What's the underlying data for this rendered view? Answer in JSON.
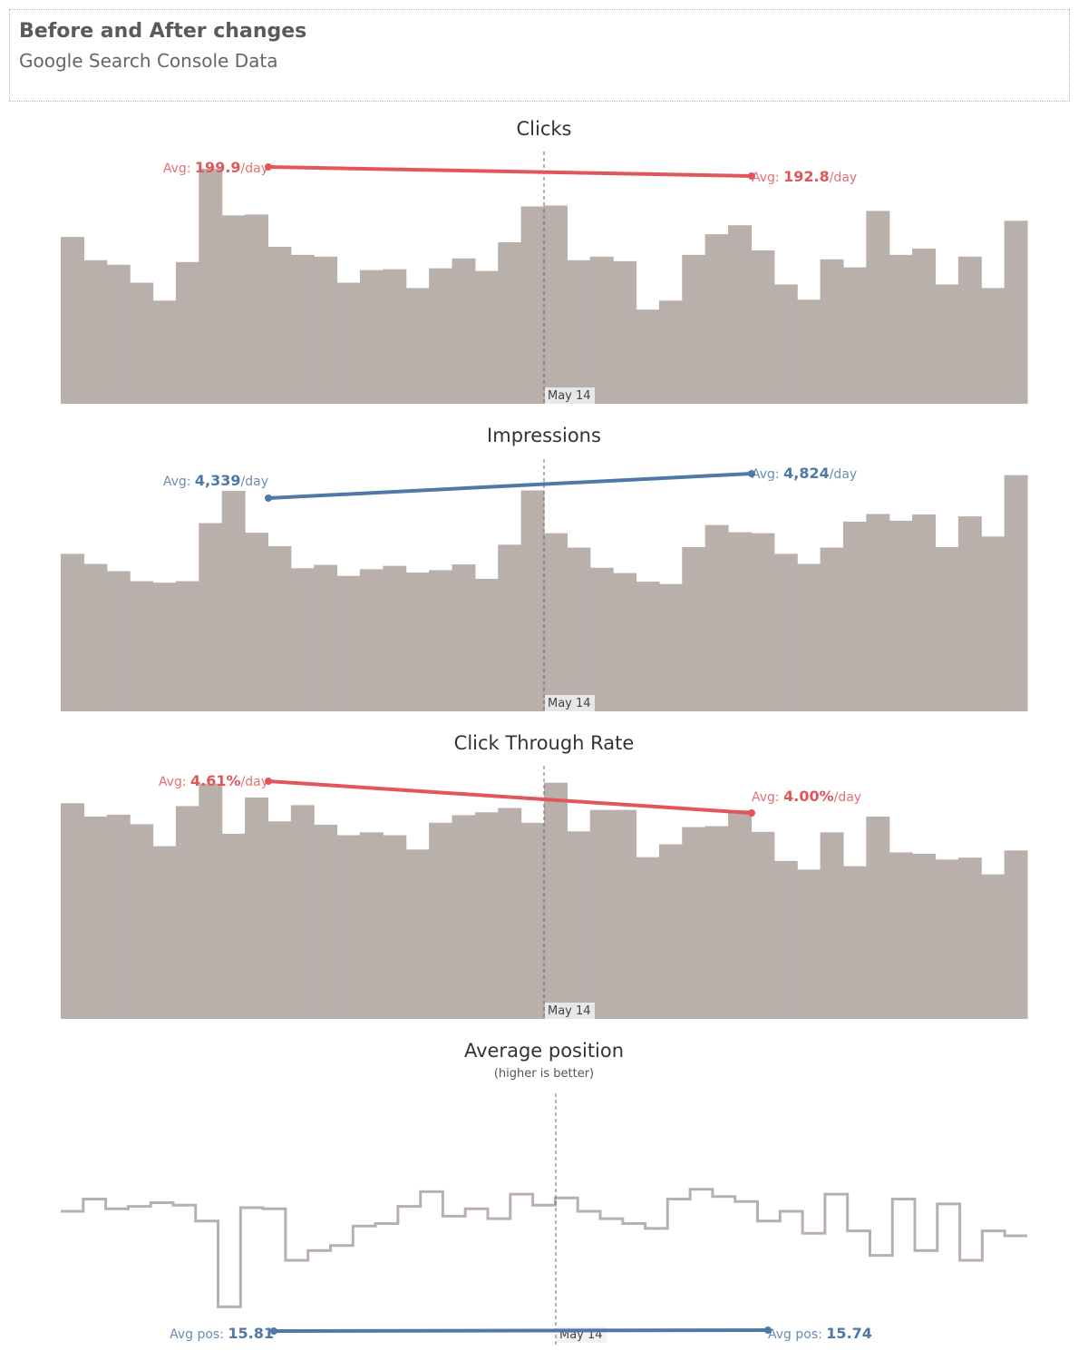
{
  "header": {
    "title": "Before and After changes",
    "subtitle": "Google Search Console Data"
  },
  "colors": {
    "bar": "#b9b0ac",
    "up": "#4e79a7",
    "down": "#e15759",
    "marker": "#666666"
  },
  "chart_data": [
    {
      "type": "area",
      "title": "Clicks",
      "marker_label": "May 14",
      "ylim": [
        0,
        265
      ],
      "values": [
        186,
        160,
        155,
        135,
        115,
        158,
        262,
        210,
        211,
        175,
        166,
        164,
        135,
        149,
        150,
        129,
        151,
        162,
        148,
        180,
        220,
        221,
        160,
        164,
        159,
        105,
        115,
        166,
        189,
        199,
        171,
        133,
        116,
        161,
        152,
        215,
        166,
        173,
        133,
        164,
        129,
        204
      ],
      "avg_before": {
        "prefix": "Avg: ",
        "value": "199.9",
        "suffix": "/day",
        "num": 199.9
      },
      "avg_after": {
        "prefix": "Avg: ",
        "value": "192.8",
        "suffix": "/day",
        "num": 192.8
      },
      "trend": "down"
    },
    {
      "type": "area",
      "title": "Impressions",
      "marker_label": "May 14",
      "ylim": [
        0,
        4950
      ],
      "values": [
        3280,
        3070,
        2920,
        2710,
        2680,
        2710,
        3920,
        4590,
        3720,
        3440,
        2980,
        3050,
        2820,
        2960,
        3030,
        2890,
        2940,
        3060,
        2760,
        3470,
        4600,
        3710,
        3410,
        2990,
        2880,
        2700,
        2650,
        3420,
        3880,
        3730,
        3710,
        3280,
        3070,
        3410,
        3950,
        4110,
        3970,
        4100,
        3420,
        4060,
        3640,
        4920
      ],
      "avg_before": {
        "prefix": "Avg: ",
        "value": "4,339",
        "suffix": "/day",
        "num": 4339
      },
      "avg_after": {
        "prefix": "Avg: ",
        "value": "4,824",
        "suffix": "/day",
        "num": 4824
      },
      "trend": "up"
    },
    {
      "type": "area",
      "title": "Click Through Rate",
      "marker_label": "May 14",
      "ylim": [
        0,
        0.05
      ],
      "values": [
        0.0452,
        0.0424,
        0.0428,
        0.0408,
        0.0362,
        0.0446,
        0.0493,
        0.0388,
        0.0464,
        0.0414,
        0.0448,
        0.0407,
        0.0385,
        0.0391,
        0.0385,
        0.0355,
        0.0411,
        0.0427,
        0.0433,
        0.0442,
        0.0411,
        0.0495,
        0.0393,
        0.0438,
        0.0438,
        0.0339,
        0.0366,
        0.0402,
        0.0404,
        0.0437,
        0.0392,
        0.0331,
        0.0313,
        0.0391,
        0.032,
        0.0424,
        0.0349,
        0.0346,
        0.0334,
        0.0338,
        0.0303,
        0.0353
      ],
      "avg_before": {
        "prefix": "Avg: ",
        "value": "4.61%",
        "suffix": "/day",
        "num": 0.0461
      },
      "avg_after": {
        "prefix": "Avg: ",
        "value": "4.00%",
        "suffix": "/day",
        "num": 0.04
      },
      "trend": "down"
    },
    {
      "type": "line",
      "title": "Average position",
      "subtitle": "(higher is better)",
      "marker_label": "May 14",
      "ylim": [
        13,
        23
      ],
      "values": [
        18.0,
        18.5,
        18.1,
        18.2,
        18.35,
        18.25,
        17.6,
        14.1,
        18.15,
        18.1,
        16.0,
        16.4,
        16.6,
        17.4,
        17.5,
        18.2,
        18.8,
        17.8,
        18.1,
        17.7,
        18.7,
        18.25,
        18.55,
        18.0,
        17.7,
        17.5,
        17.3,
        18.5,
        18.9,
        18.6,
        18.4,
        17.6,
        18.0,
        17.1,
        18.7,
        17.2,
        16.2,
        18.5,
        16.4,
        18.3,
        16.0,
        17.2,
        17.0
      ],
      "avg_before": {
        "prefix": "Avg pos: ",
        "value": "15.81",
        "suffix": "",
        "num": 15.81
      },
      "avg_after": {
        "prefix": "Avg pos: ",
        "value": "15.74",
        "suffix": "",
        "num": 15.74
      },
      "trend": "up"
    }
  ]
}
